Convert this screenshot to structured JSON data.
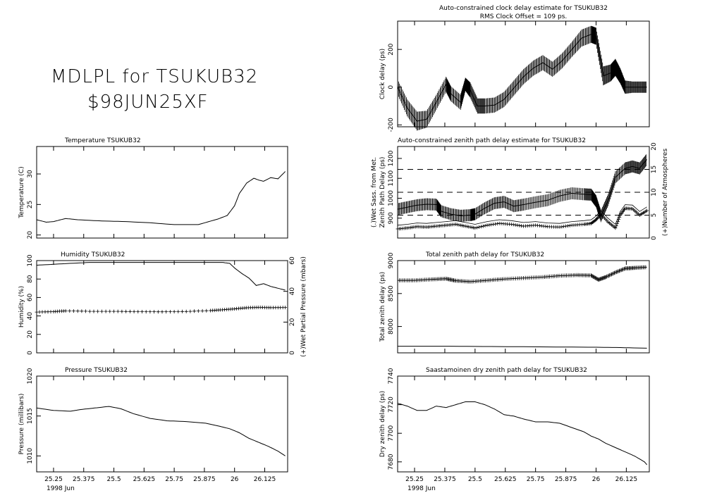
{
  "header": {
    "title_line1": "MDLPL for TSUKUB32",
    "title_line2": "$98JUN25XF"
  },
  "x_axis": {
    "range": [
      25.18,
      26.22
    ],
    "ticks": [
      25.25,
      25.375,
      25.5,
      25.625,
      25.75,
      25.875,
      26,
      26.125
    ],
    "tick_labels": [
      "25.25",
      "25.375",
      "25.5",
      "25.625",
      "25.75",
      "25.875",
      "26",
      "26.125"
    ],
    "date_label": "1998 Jun"
  },
  "chart_data": [
    {
      "type": "line",
      "id": "temperature",
      "title": "Temperature   TSUKUB32",
      "ylabel": "Temperature (C)",
      "ylim": [
        19.5,
        34.5
      ],
      "yticks": [
        20,
        25,
        30
      ],
      "ytick_labels": [
        "20",
        "25",
        "30"
      ],
      "series": [
        {
          "x": [
            25.18,
            25.22,
            25.25,
            25.3,
            25.35,
            25.45,
            25.55,
            25.65,
            25.75,
            25.85,
            25.93,
            25.97,
            26.0,
            26.02,
            26.05,
            26.08,
            26.1,
            26.12,
            26.15,
            26.18,
            26.21
          ],
          "y": [
            22.5,
            22.1,
            22.2,
            22.7,
            22.5,
            22.3,
            22.2,
            22.0,
            21.7,
            21.7,
            22.6,
            23.2,
            24.8,
            26.8,
            28.5,
            29.3,
            29.0,
            28.8,
            29.4,
            29.2,
            30.4
          ]
        }
      ]
    },
    {
      "type": "line",
      "id": "humidity",
      "title": "Humidity       TSUKUB32",
      "ylabel": "Humidity (%)",
      "ylim": [
        0,
        100
      ],
      "yticks": [
        0,
        20,
        40,
        60,
        80,
        100
      ],
      "ytick_labels": [
        "0",
        "20",
        "40",
        "60",
        "80",
        "100"
      ],
      "y2label": "(+)Wet Partial Pressure (mbars)",
      "y2lim": [
        0,
        60
      ],
      "y2ticks": [
        0,
        20,
        40,
        60
      ],
      "y2tick_labels": [
        "0",
        "20",
        "40",
        "60"
      ],
      "series": [
        {
          "x": [
            25.18,
            25.25,
            25.32,
            25.4,
            25.5,
            25.6,
            25.7,
            25.8,
            25.9,
            25.95,
            25.98,
            26.0,
            26.03,
            26.06,
            26.09,
            26.12,
            26.15,
            26.18,
            26.21
          ],
          "y": [
            95,
            96,
            97,
            98,
            98,
            98,
            98,
            98,
            98,
            98,
            97,
            92,
            86,
            81,
            73,
            75,
            72,
            70,
            68
          ]
        },
        {
          "axis": "right",
          "x": [
            25.18,
            25.25,
            25.3,
            25.4,
            25.5,
            25.6,
            25.7,
            25.8,
            25.9,
            25.95,
            26.0,
            26.05,
            26.1,
            26.15,
            26.21
          ],
          "y": [
            26.5,
            26.8,
            27.3,
            27.0,
            27.0,
            26.8,
            26.7,
            26.9,
            27.5,
            28.0,
            28.6,
            29.3,
            29.6,
            29.4,
            29.5
          ]
        }
      ]
    },
    {
      "type": "line",
      "id": "pressure",
      "title": "Pressure       TSUKUB32",
      "ylabel": "Pressure (millibars)",
      "ylim": [
        1008,
        1020
      ],
      "yticks": [
        1010,
        1015,
        1020
      ],
      "ytick_labels": [
        "1010",
        "1015",
        "1020"
      ],
      "series": [
        {
          "x": [
            25.18,
            25.25,
            25.32,
            25.36,
            25.42,
            25.48,
            25.53,
            25.58,
            25.65,
            25.72,
            25.8,
            25.88,
            25.94,
            25.98,
            26.02,
            26.06,
            26.1,
            26.14,
            26.18,
            26.21
          ],
          "y": [
            1016.0,
            1015.7,
            1015.6,
            1015.8,
            1016.0,
            1016.2,
            1015.9,
            1015.3,
            1014.7,
            1014.4,
            1014.3,
            1014.1,
            1013.7,
            1013.4,
            1012.9,
            1012.2,
            1011.7,
            1011.2,
            1010.6,
            1010.0
          ]
        }
      ]
    },
    {
      "type": "line",
      "id": "clock",
      "title": "Auto-constrained clock delay estimate for TSUKUB32",
      "subtitle": "RMS Clock Offset =  109 ps.",
      "ylabel": "Clock delay (ps)",
      "ylim": [
        -210,
        350
      ],
      "yticks": [
        -200,
        0,
        200
      ],
      "ytick_labels": [
        "-200",
        "0",
        "200"
      ],
      "series": [
        {
          "x": [
            25.18,
            25.22,
            25.26,
            25.3,
            25.34,
            25.38,
            25.4,
            25.44,
            25.46,
            25.48,
            25.51,
            25.54,
            25.58,
            25.62,
            25.66,
            25.7,
            25.74,
            25.78,
            25.82,
            25.86,
            25.9,
            25.94,
            25.98,
            26.0,
            26.03,
            26.06,
            26.08,
            26.1,
            26.12,
            26.15,
            26.18,
            26.21
          ],
          "y": [
            0,
            -110,
            -180,
            -170,
            -80,
            15,
            -35,
            -80,
            15,
            -15,
            -100,
            -100,
            -95,
            -65,
            -5,
            55,
            100,
            130,
            95,
            140,
            200,
            260,
            280,
            270,
            60,
            75,
            105,
            60,
            0,
            0,
            0,
            0
          ],
          "err": [
            40,
            45,
            50,
            45,
            40,
            40,
            40,
            40,
            35,
            40,
            40,
            40,
            40,
            40,
            40,
            40,
            40,
            40,
            40,
            40,
            40,
            45,
            45,
            45,
            50,
            45,
            45,
            40,
            35,
            30,
            30,
            30
          ]
        }
      ]
    },
    {
      "type": "line",
      "id": "zenith",
      "title": "Auto-constrained zenith path delay estimate for TSUKUB32",
      "ylabel": "Zenith Path Delay (ps)",
      "ylabel_outer": "(.)Wet Sass. from Met.",
      "ylim": [
        800,
        1260
      ],
      "yticks": [
        900,
        1000,
        1100,
        1200
      ],
      "ytick_labels": [
        "900",
        "1000",
        "1100",
        "1200"
      ],
      "y2label": "(+)Number of Atmospheres",
      "y2lim": [
        0,
        20
      ],
      "y2ticks": [
        0,
        5,
        10,
        15,
        20
      ],
      "y2tick_labels": [
        "0",
        "5",
        "10",
        "15",
        "20"
      ],
      "dashed_levels_right": [
        5,
        10,
        15
      ],
      "series": [
        {
          "x": [
            25.18,
            25.22,
            25.26,
            25.3,
            25.34,
            25.36,
            25.4,
            25.44,
            25.48,
            25.5,
            25.54,
            25.58,
            25.62,
            25.66,
            25.7,
            25.75,
            25.8,
            25.85,
            25.9,
            25.95,
            25.98,
            26.0,
            26.02,
            26.05,
            26.08,
            26.12,
            26.15,
            26.18,
            26.21
          ],
          "y": [
            945,
            955,
            965,
            970,
            968,
            935,
            920,
            912,
            915,
            920,
            950,
            975,
            982,
            960,
            968,
            980,
            990,
            1012,
            1025,
            1020,
            1018,
            985,
            910,
            990,
            1105,
            1150,
            1160,
            1150,
            1195
          ],
          "err": [
            30,
            30,
            30,
            30,
            30,
            30,
            30,
            30,
            30,
            30,
            30,
            30,
            30,
            30,
            30,
            30,
            30,
            30,
            30,
            30,
            30,
            30,
            30,
            30,
            30,
            30,
            30,
            30,
            30
          ]
        },
        {
          "axis": "right",
          "x": [
            25.18,
            25.22,
            25.26,
            25.3,
            25.34,
            25.38,
            25.42,
            25.46,
            25.5,
            25.55,
            25.6,
            25.65,
            25.7,
            25.75,
            25.8,
            25.85,
            25.9,
            25.95,
            25.98,
            26.0,
            26.02,
            26.05,
            26.08,
            26.1,
            26.12,
            26.15,
            26.18,
            26.21
          ],
          "y": [
            2.0,
            2.2,
            2.5,
            2.4,
            2.6,
            2.8,
            3.0,
            2.6,
            2.2,
            2.8,
            3.2,
            3.0,
            2.6,
            2.8,
            2.5,
            2.4,
            2.8,
            3.0,
            3.2,
            4.0,
            5.2,
            3.5,
            2.2,
            5.0,
            6.5,
            6.4,
            5.0,
            6.0
          ]
        }
      ]
    },
    {
      "type": "line",
      "id": "total",
      "title": "Total zenith path delay for TSUKUB32",
      "ylabel": "Total zenith delay (ps)",
      "ylim": [
        7600,
        9000
      ],
      "yticks": [
        8000,
        8500,
        9000
      ],
      "ytick_labels": [
        "8000",
        "8500",
        "9000"
      ],
      "series": [
        {
          "x": [
            25.18,
            25.25,
            25.32,
            25.38,
            25.42,
            25.48,
            25.55,
            25.62,
            25.7,
            25.78,
            25.85,
            25.92,
            25.98,
            26.01,
            26.04,
            26.08,
            26.12,
            26.16,
            26.21
          ],
          "y": [
            8700,
            8700,
            8715,
            8725,
            8695,
            8680,
            8700,
            8720,
            8735,
            8750,
            8770,
            8780,
            8775,
            8710,
            8750,
            8820,
            8880,
            8890,
            8900
          ],
          "err": [
            30,
            30,
            30,
            30,
            30,
            30,
            30,
            30,
            30,
            30,
            30,
            30,
            30,
            30,
            30,
            30,
            30,
            30,
            30
          ]
        },
        {
          "x": [
            25.18,
            25.4,
            25.6,
            25.8,
            26.0,
            26.1,
            26.21
          ],
          "y": [
            7700,
            7700,
            7695,
            7690,
            7685,
            7680,
            7670
          ]
        }
      ]
    },
    {
      "type": "line",
      "id": "dry",
      "title": "Saastamoinen dry zenith path delay for TSUKUB32",
      "ylabel": "Dry zenith delay (ps)",
      "ylim": [
        7673,
        7740
      ],
      "yticks": [
        7680,
        7700,
        7720,
        7740
      ],
      "ytick_labels": [
        "7680",
        "7700",
        "7720",
        "7740"
      ],
      "series": [
        {
          "x": [
            25.18,
            25.22,
            25.26,
            25.3,
            25.34,
            25.38,
            25.42,
            25.46,
            25.5,
            25.54,
            25.58,
            25.62,
            25.66,
            25.7,
            25.75,
            25.8,
            25.85,
            25.9,
            25.95,
            25.98,
            26.01,
            26.04,
            26.08,
            26.12,
            26.16,
            26.2,
            26.21
          ],
          "y": [
            7721,
            7719,
            7716,
            7716,
            7719,
            7718,
            7720,
            7722,
            7722,
            7720,
            7717,
            7713,
            7712,
            7710,
            7708,
            7708,
            7707,
            7704,
            7701,
            7698,
            7696,
            7693,
            7690,
            7687,
            7684,
            7680,
            7678
          ]
        }
      ]
    }
  ]
}
